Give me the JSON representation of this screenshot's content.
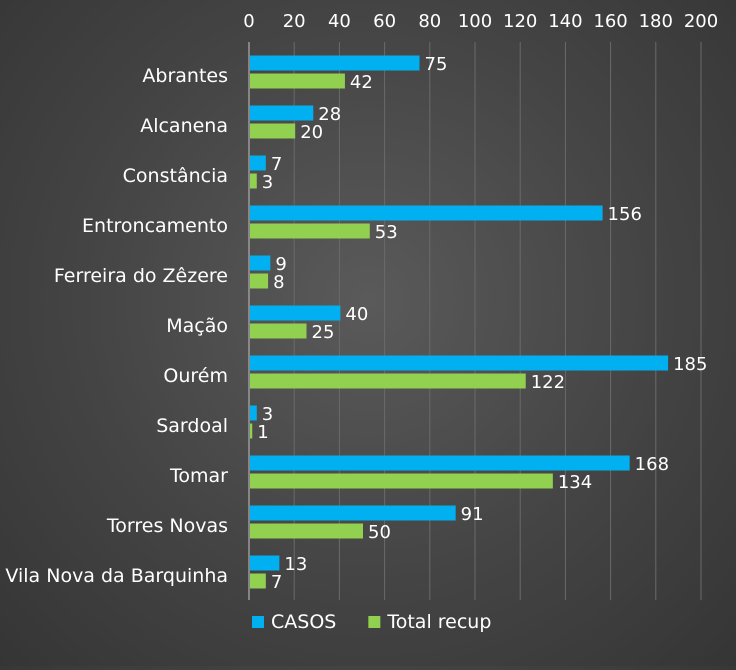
{
  "chart_data": {
    "type": "bar",
    "orientation": "horizontal",
    "title": "",
    "xlabel": "",
    "ylabel": "",
    "xlim": [
      0,
      200
    ],
    "x_ticks": [
      0,
      20,
      40,
      60,
      80,
      100,
      120,
      140,
      160,
      180,
      200
    ],
    "x_axis_position": "top",
    "grid": true,
    "legend_position": "bottom",
    "categories": [
      "Abrantes",
      "Alcanena",
      "Constância",
      "Entroncamento",
      "Ferreira do Zêzere",
      "Mação",
      "Ourém",
      "Sardoal",
      "Tomar",
      "Torres Novas",
      "Vila Nova da Barquinha"
    ],
    "series": [
      {
        "name": "CASOS",
        "color": "#00b0f0",
        "values": [
          75,
          28,
          7,
          156,
          9,
          40,
          185,
          3,
          168,
          91,
          13
        ]
      },
      {
        "name": "Total recup",
        "color": "#92d050",
        "values": [
          42,
          20,
          3,
          53,
          8,
          25,
          122,
          1,
          134,
          50,
          7
        ]
      }
    ],
    "background_color": "#474747",
    "text_color": "#ffffff",
    "gridline_color": "#6a6a6a"
  }
}
